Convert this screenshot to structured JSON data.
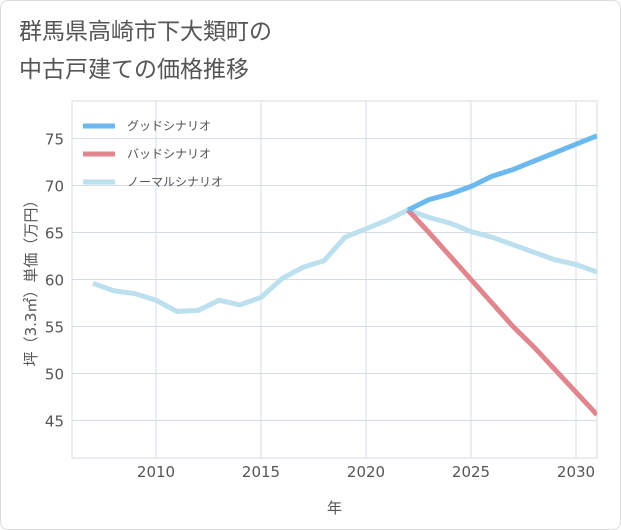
{
  "title_line1": "群馬県高崎市下大類町の",
  "title_line2": "中古戸建ての価格推移",
  "chart_data": {
    "type": "line",
    "xlabel": "年",
    "ylabel": "坪（3.3㎡）単価（万円）",
    "xlim": [
      2006,
      2031
    ],
    "ylim": [
      41,
      79
    ],
    "xticks": [
      2010,
      2015,
      2020,
      2025,
      2030
    ],
    "yticks": [
      45,
      50,
      55,
      60,
      65,
      70,
      75
    ],
    "grid": true,
    "legend_position": "top-left",
    "series": [
      {
        "name": "グッドシナリオ",
        "color": "#6bb9ee",
        "points": [
          [
            2022,
            67.4
          ],
          [
            2023,
            68.5
          ],
          [
            2024,
            69.1
          ],
          [
            2025,
            69.9
          ],
          [
            2026,
            71.0
          ],
          [
            2027,
            71.7
          ],
          [
            2028,
            72.6
          ],
          [
            2029,
            73.5
          ],
          [
            2030,
            74.4
          ],
          [
            2031,
            75.3
          ]
        ]
      },
      {
        "name": "バッドシナリオ",
        "color": "#e0868e",
        "points": [
          [
            2022,
            67.4
          ],
          [
            2023,
            65.0
          ],
          [
            2024,
            62.5
          ],
          [
            2025,
            60.0
          ],
          [
            2026,
            57.5
          ],
          [
            2027,
            55.0
          ],
          [
            2028,
            52.8
          ],
          [
            2029,
            50.4
          ],
          [
            2030,
            48.0
          ],
          [
            2031,
            45.6
          ]
        ]
      },
      {
        "name": "ノーマルシナリオ",
        "color": "#bde0ee",
        "points": [
          [
            2007,
            59.6
          ],
          [
            2008,
            58.8
          ],
          [
            2009,
            58.5
          ],
          [
            2010,
            57.8
          ],
          [
            2011,
            56.6
          ],
          [
            2012,
            56.7
          ],
          [
            2013,
            57.8
          ],
          [
            2014,
            57.3
          ],
          [
            2015,
            58.1
          ],
          [
            2016,
            60.1
          ],
          [
            2017,
            61.3
          ],
          [
            2018,
            62.0
          ],
          [
            2019,
            64.5
          ],
          [
            2020,
            65.4
          ],
          [
            2021,
            66.3
          ],
          [
            2022,
            67.4
          ],
          [
            2023,
            66.6
          ],
          [
            2024,
            66.0
          ],
          [
            2025,
            65.1
          ],
          [
            2026,
            64.5
          ],
          [
            2027,
            63.7
          ],
          [
            2028,
            62.9
          ],
          [
            2029,
            62.1
          ],
          [
            2030,
            61.6
          ],
          [
            2031,
            60.8
          ]
        ]
      }
    ]
  }
}
